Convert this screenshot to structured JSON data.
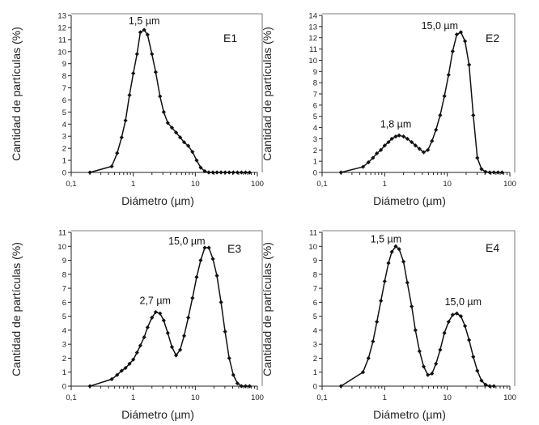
{
  "chart_data": [
    {
      "type": "scatter",
      "title": "E1",
      "xlabel": "Diámetro (µm)",
      "ylabel": "Cantidad de partículas (%)",
      "xscale": "log",
      "xlim": [
        0.1,
        100
      ],
      "ylim": [
        0,
        13
      ],
      "x_ticks": [
        "0,1",
        "1",
        "10",
        "100"
      ],
      "y_ticks": [
        0,
        1,
        2,
        3,
        4,
        5,
        6,
        7,
        8,
        9,
        10,
        11,
        12,
        13
      ],
      "peak_labels": [
        {
          "text": "1,5 µm",
          "x": 1.5,
          "y": 11.8
        }
      ],
      "series": [
        {
          "x": [
            0.2,
            0.45,
            0.55,
            0.65,
            0.75,
            0.87,
            1.0,
            1.15,
            1.3,
            1.5,
            1.7,
            2.0,
            2.3,
            2.7,
            3.1,
            3.6,
            4.2,
            4.9,
            5.7,
            6.6,
            7.7,
            9.0,
            10.5,
            12.2,
            14.2,
            16.5,
            19.2,
            22.3,
            26,
            30.2,
            35.2,
            41,
            47.7,
            55.5,
            64.6,
            75
          ],
          "y": [
            0,
            0.5,
            1.6,
            2.9,
            4.3,
            6.4,
            8.2,
            9.8,
            11.6,
            11.8,
            11.4,
            9.8,
            8.3,
            6.3,
            5.0,
            4.1,
            3.7,
            3.3,
            2.9,
            2.5,
            2.2,
            1.7,
            1.0,
            0.4,
            0.1,
            0,
            0,
            0,
            0,
            0,
            0,
            0,
            0,
            0,
            0,
            0
          ]
        }
      ]
    },
    {
      "type": "scatter",
      "title": "E2",
      "xlabel": "Diámetro (µm)",
      "ylabel": "Cantidad de partículas (%)",
      "xscale": "log",
      "xlim": [
        0.1,
        100
      ],
      "ylim": [
        0,
        14
      ],
      "x_ticks": [
        "0,1",
        "1",
        "10",
        "100"
      ],
      "y_ticks": [
        0,
        1,
        2,
        3,
        4,
        5,
        6,
        7,
        8,
        9,
        10,
        11,
        12,
        13,
        14
      ],
      "peak_labels": [
        {
          "text": "1,8 µm",
          "x": 1.8,
          "y": 3.3
        },
        {
          "text": "15,0 µm",
          "x": 15,
          "y": 12.5
        }
      ],
      "series": [
        {
          "x": [
            0.2,
            0.45,
            0.55,
            0.65,
            0.75,
            0.87,
            1.0,
            1.15,
            1.3,
            1.5,
            1.7,
            2.0,
            2.3,
            2.7,
            3.1,
            3.6,
            4.2,
            4.9,
            5.7,
            6.6,
            7.7,
            9.0,
            10.5,
            12.2,
            14.2,
            16.5,
            19.2,
            22.3,
            26,
            30.2,
            35.2,
            41,
            47.7,
            55.5,
            64.6,
            75
          ],
          "y": [
            0,
            0.5,
            0.9,
            1.3,
            1.7,
            2.0,
            2.4,
            2.7,
            3.0,
            3.2,
            3.3,
            3.2,
            3.0,
            2.7,
            2.4,
            2.1,
            1.8,
            2.0,
            2.8,
            3.8,
            5.1,
            6.8,
            8.7,
            10.8,
            12.3,
            12.5,
            11.7,
            9.6,
            5.1,
            1.3,
            0.3,
            0.05,
            0,
            0,
            0,
            0
          ]
        }
      ]
    },
    {
      "type": "scatter",
      "title": "E3",
      "xlabel": "Diámetro (µm)",
      "ylabel": "Cantidad de partículas (%)",
      "xscale": "log",
      "xlim": [
        0.1,
        100
      ],
      "ylim": [
        0,
        11
      ],
      "x_ticks": [
        "0,1",
        "1",
        "10",
        "100"
      ],
      "y_ticks": [
        0,
        1,
        2,
        3,
        4,
        5,
        6,
        7,
        8,
        9,
        10,
        11
      ],
      "peak_labels": [
        {
          "text": "2,7 µm",
          "x": 2.7,
          "y": 5.3
        },
        {
          "text": "15,0 µm",
          "x": 15,
          "y": 9.9
        }
      ],
      "series": [
        {
          "x": [
            0.2,
            0.45,
            0.55,
            0.65,
            0.75,
            0.87,
            1.0,
            1.15,
            1.3,
            1.5,
            1.7,
            2.0,
            2.3,
            2.7,
            3.1,
            3.6,
            4.2,
            4.9,
            5.7,
            6.6,
            7.7,
            9.0,
            10.5,
            12.2,
            14.2,
            16.5,
            19.2,
            22.3,
            26,
            30.2,
            35.2,
            41,
            47.7,
            55.5,
            64.6,
            75
          ],
          "y": [
            0,
            0.5,
            0.8,
            1.1,
            1.3,
            1.6,
            1.9,
            2.4,
            2.9,
            3.5,
            4.2,
            4.9,
            5.3,
            5.2,
            4.7,
            3.8,
            2.8,
            2.2,
            2.6,
            3.6,
            4.9,
            6.3,
            7.8,
            9.0,
            9.9,
            9.9,
            9.1,
            7.9,
            6.0,
            3.9,
            2.0,
            0.8,
            0.2,
            0,
            0,
            0
          ]
        }
      ]
    },
    {
      "type": "scatter",
      "title": "E4",
      "xlabel": "Diámetro (µm)",
      "ylabel": "Cantidad de partículas (%)",
      "xscale": "log",
      "xlim": [
        0.1,
        100
      ],
      "ylim": [
        0,
        11
      ],
      "x_ticks": [
        "0,1",
        "1",
        "10",
        "100"
      ],
      "y_ticks": [
        0,
        1,
        2,
        3,
        4,
        5,
        6,
        7,
        8,
        9,
        10,
        11
      ],
      "peak_labels": [
        {
          "text": "1,5 µm",
          "x": 1.5,
          "y": 10.0
        },
        {
          "text": "15,0 µm",
          "x": 15,
          "y": 5.2
        }
      ],
      "series": [
        {
          "x": [
            0.2,
            0.45,
            0.55,
            0.65,
            0.75,
            0.87,
            1.0,
            1.15,
            1.3,
            1.5,
            1.7,
            2.0,
            2.3,
            2.7,
            3.1,
            3.6,
            4.2,
            4.9,
            5.7,
            6.6,
            7.7,
            9.0,
            10.5,
            12.2,
            14.2,
            16.5,
            19.2,
            22.3,
            26,
            30.2,
            35.2,
            41,
            47.7,
            55.5
          ],
          "y": [
            0,
            1.0,
            2.0,
            3.2,
            4.6,
            6.1,
            7.5,
            8.8,
            9.6,
            10.0,
            9.8,
            8.9,
            7.4,
            5.7,
            4.0,
            2.5,
            1.4,
            0.8,
            0.9,
            1.6,
            2.6,
            3.8,
            4.6,
            5.1,
            5.2,
            5.0,
            4.3,
            3.3,
            2.1,
            1.1,
            0.4,
            0.1,
            0,
            0
          ]
        }
      ]
    }
  ]
}
